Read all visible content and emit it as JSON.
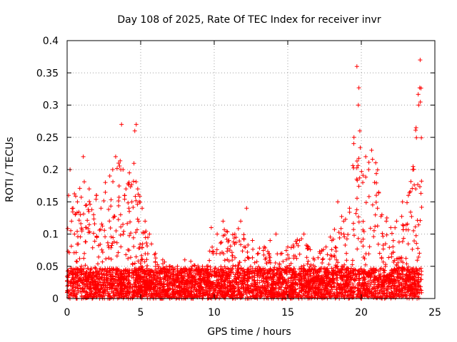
{
  "chart_data": {
    "type": "scatter",
    "title": "Day 108 of 2025, Rate Of TEC Index for receiver invr",
    "xlabel": "GPS time / hours",
    "ylabel": "ROTI / TECUs",
    "xlim": [
      0,
      25
    ],
    "ylim": [
      0,
      0.4
    ],
    "xticks": [
      0,
      5,
      10,
      15,
      20,
      25
    ],
    "yticks": [
      0,
      0.05,
      0.1,
      0.15,
      0.2,
      0.25,
      0.3,
      0.35,
      0.4
    ],
    "xtick_labels": [
      "0",
      "5",
      "10",
      "15",
      "20",
      "25"
    ],
    "ytick_labels": [
      "0",
      "0.05",
      "0.1",
      "0.15",
      "0.2",
      "0.25",
      "0.3",
      "0.35",
      "0.4"
    ],
    "grid": true,
    "marker": "+",
    "marker_color": "#ff0000",
    "series": [
      {
        "name": "ROTI",
        "x": [
          0.1,
          0.2,
          0.3,
          0.4,
          0.5,
          0.7,
          0.9,
          1.1,
          1.3,
          1.5,
          1.8,
          2.0,
          2.3,
          2.6,
          2.9,
          3.1,
          3.3,
          3.5,
          3.7,
          3.8,
          3.9,
          4.0,
          4.2,
          4.4,
          4.6,
          4.7,
          4.8,
          4.9,
          5.1,
          5.3,
          5.6,
          6.0,
          6.5,
          7.0,
          7.5,
          8.0,
          8.5,
          9.0,
          9.5,
          9.8,
          10.2,
          10.6,
          11.0,
          11.4,
          11.8,
          12.2,
          12.6,
          13.0,
          13.4,
          13.8,
          14.2,
          14.6,
          15.0,
          15.4,
          15.8,
          16.1,
          16.4,
          16.8,
          17.2,
          17.6,
          18.0,
          18.4,
          18.8,
          19.2,
          19.5,
          19.7,
          19.8,
          19.9,
          20.1,
          20.3,
          20.5,
          20.7,
          20.9,
          21.1,
          21.4,
          21.7,
          22.0,
          22.4,
          22.8,
          23.2,
          23.5,
          23.7,
          23.9,
          24.0
        ],
        "y": [
          0.16,
          0.2,
          0.12,
          0.14,
          0.1,
          0.15,
          0.13,
          0.22,
          0.11,
          0.17,
          0.13,
          0.16,
          0.14,
          0.18,
          0.19,
          0.2,
          0.22,
          0.21,
          0.27,
          0.2,
          0.16,
          0.17,
          0.14,
          0.15,
          0.26,
          0.27,
          0.17,
          0.15,
          0.14,
          0.12,
          0.1,
          0.07,
          0.06,
          0.05,
          0.05,
          0.06,
          0.05,
          0.04,
          0.05,
          0.11,
          0.1,
          0.12,
          0.09,
          0.1,
          0.12,
          0.14,
          0.09,
          0.07,
          0.08,
          0.09,
          0.1,
          0.07,
          0.08,
          0.08,
          0.09,
          0.1,
          0.08,
          0.06,
          0.07,
          0.08,
          0.09,
          0.15,
          0.12,
          0.14,
          0.25,
          0.36,
          0.3,
          0.26,
          0.18,
          0.22,
          0.2,
          0.23,
          0.18,
          0.14,
          0.13,
          0.12,
          0.11,
          0.12,
          0.15,
          0.16,
          0.2,
          0.17,
          0.3,
          0.37
        ]
      }
    ],
    "cloud": {
      "description_range": "dense base band of points between 0 and roughly 0.05 across all hours",
      "hourly_peak_envelope": [
        [
          0,
          0.12
        ],
        [
          0.5,
          0.17
        ],
        [
          1,
          0.2
        ],
        [
          1.5,
          0.15
        ],
        [
          2,
          0.18
        ],
        [
          2.5,
          0.16
        ],
        [
          3,
          0.2
        ],
        [
          3.5,
          0.22
        ],
        [
          4,
          0.2
        ],
        [
          4.5,
          0.26
        ],
        [
          5,
          0.15
        ],
        [
          5.5,
          0.1
        ],
        [
          6,
          0.07
        ],
        [
          6.5,
          0.06
        ],
        [
          7,
          0.05
        ],
        [
          7.5,
          0.05
        ],
        [
          8,
          0.05
        ],
        [
          8.5,
          0.06
        ],
        [
          9,
          0.05
        ],
        [
          9.5,
          0.06
        ],
        [
          10,
          0.11
        ],
        [
          10.5,
          0.1
        ],
        [
          11,
          0.12
        ],
        [
          11.5,
          0.1
        ],
        [
          12,
          0.13
        ],
        [
          12.5,
          0.09
        ],
        [
          13,
          0.08
        ],
        [
          13.5,
          0.08
        ],
        [
          14,
          0.09
        ],
        [
          14.5,
          0.07
        ],
        [
          15,
          0.08
        ],
        [
          15.5,
          0.09
        ],
        [
          16,
          0.1
        ],
        [
          16.5,
          0.08
        ],
        [
          17,
          0.07
        ],
        [
          17.5,
          0.08
        ],
        [
          18,
          0.1
        ],
        [
          18.5,
          0.15
        ],
        [
          19,
          0.13
        ],
        [
          19.5,
          0.25
        ],
        [
          19.8,
          0.36
        ],
        [
          20,
          0.2
        ],
        [
          20.5,
          0.22
        ],
        [
          21,
          0.23
        ],
        [
          21.5,
          0.14
        ],
        [
          22,
          0.12
        ],
        [
          22.5,
          0.12
        ],
        [
          23,
          0.15
        ],
        [
          23.5,
          0.2
        ],
        [
          24,
          0.37
        ]
      ]
    }
  }
}
